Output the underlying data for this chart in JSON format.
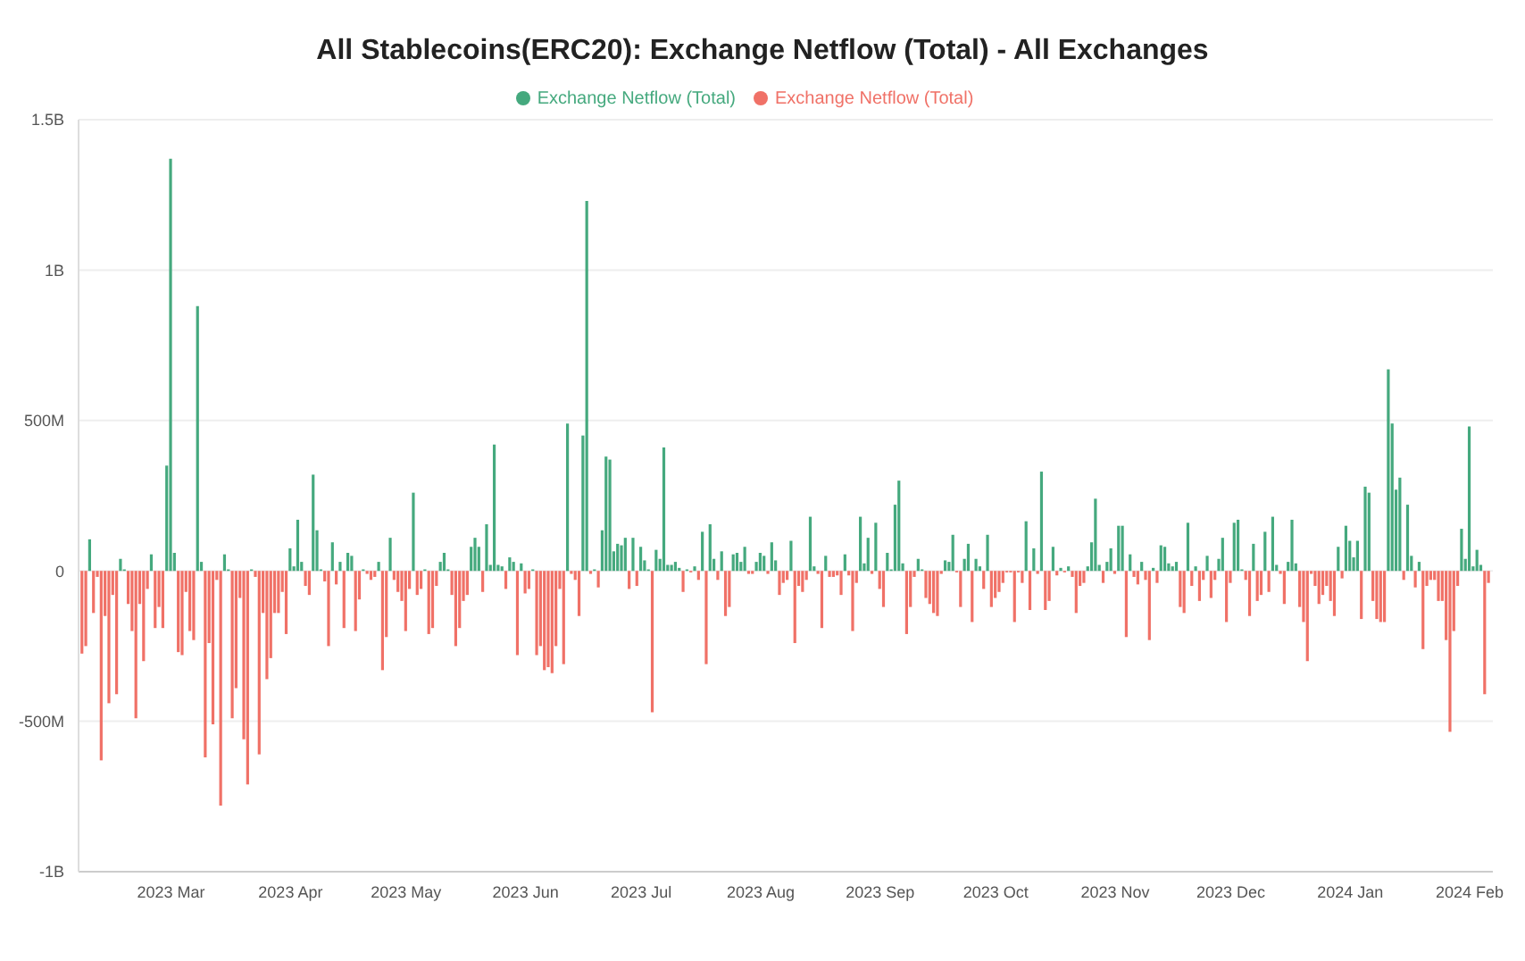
{
  "chart_data": {
    "type": "bar",
    "title": "All Stablecoins(ERC20): Exchange Netflow (Total) - All Exchanges",
    "x": [
      "2023-02-06",
      "2023-02-07",
      "2023-02-08",
      "2023-02-09",
      "2023-02-10",
      "2023-02-11",
      "2023-02-12",
      "2023-02-13",
      "2023-02-14",
      "2023-02-15",
      "2023-02-16",
      "2023-02-17",
      "2023-02-18",
      "2023-02-19",
      "2023-02-20",
      "2023-02-21",
      "2023-02-22",
      "2023-02-23",
      "2023-02-24",
      "2023-02-25",
      "2023-02-26",
      "2023-02-27",
      "2023-02-28",
      "2023-03-01",
      "2023-03-02",
      "2023-03-03",
      "2023-03-04",
      "2023-03-05",
      "2023-03-06",
      "2023-03-07",
      "2023-03-08",
      "2023-03-09",
      "2023-03-10",
      "2023-03-11",
      "2023-03-12",
      "2023-03-13",
      "2023-03-14",
      "2023-03-15",
      "2023-03-16",
      "2023-03-17",
      "2023-03-18",
      "2023-03-19",
      "2023-03-20",
      "2023-03-21",
      "2023-03-22",
      "2023-03-23",
      "2023-03-24",
      "2023-03-25",
      "2023-03-26",
      "2023-03-27",
      "2023-03-28",
      "2023-03-29",
      "2023-03-30",
      "2023-03-31",
      "2023-04-01",
      "2023-04-02",
      "2023-04-03",
      "2023-04-04",
      "2023-04-05",
      "2023-04-06",
      "2023-04-07",
      "2023-04-08",
      "2023-04-09",
      "2023-04-10",
      "2023-04-11",
      "2023-04-12",
      "2023-04-13",
      "2023-04-14",
      "2023-04-15",
      "2023-04-16",
      "2023-04-17",
      "2023-04-18",
      "2023-04-19",
      "2023-04-20",
      "2023-04-21",
      "2023-04-22",
      "2023-04-23",
      "2023-04-24",
      "2023-04-25",
      "2023-04-26",
      "2023-04-27",
      "2023-04-28",
      "2023-04-29",
      "2023-04-30",
      "2023-05-01",
      "2023-05-02",
      "2023-05-03",
      "2023-05-04",
      "2023-05-05",
      "2023-05-06",
      "2023-05-07",
      "2023-05-08",
      "2023-05-09",
      "2023-05-10",
      "2023-05-11",
      "2023-05-12",
      "2023-05-13",
      "2023-05-14",
      "2023-05-15",
      "2023-05-16",
      "2023-05-17",
      "2023-05-18",
      "2023-05-19",
      "2023-05-20",
      "2023-05-21",
      "2023-05-22",
      "2023-05-23",
      "2023-05-24",
      "2023-05-25",
      "2023-05-26",
      "2023-05-27",
      "2023-05-28",
      "2023-05-29",
      "2023-05-30",
      "2023-05-31",
      "2023-06-01",
      "2023-06-02",
      "2023-06-03",
      "2023-06-04",
      "2023-06-05",
      "2023-06-06",
      "2023-06-07",
      "2023-06-08",
      "2023-06-09",
      "2023-06-10",
      "2023-06-11",
      "2023-06-12",
      "2023-06-13",
      "2023-06-14",
      "2023-06-15",
      "2023-06-16",
      "2023-06-17",
      "2023-06-18",
      "2023-06-19",
      "2023-06-20",
      "2023-06-21",
      "2023-06-22",
      "2023-06-23",
      "2023-06-24",
      "2023-06-25",
      "2023-06-26",
      "2023-06-27",
      "2023-06-28",
      "2023-06-29",
      "2023-06-30",
      "2023-07-01",
      "2023-07-02",
      "2023-07-03",
      "2023-07-04",
      "2023-07-05",
      "2023-07-06",
      "2023-07-07",
      "2023-07-08",
      "2023-07-09",
      "2023-07-10",
      "2023-07-11",
      "2023-07-12",
      "2023-07-13",
      "2023-07-14",
      "2023-07-15",
      "2023-07-16",
      "2023-07-17",
      "2023-07-18",
      "2023-07-19",
      "2023-07-20",
      "2023-07-21",
      "2023-07-22",
      "2023-07-23",
      "2023-07-24",
      "2023-07-25",
      "2023-07-26",
      "2023-07-27",
      "2023-07-28",
      "2023-07-29",
      "2023-07-30",
      "2023-07-31",
      "2023-08-01",
      "2023-08-02",
      "2023-08-03",
      "2023-08-04",
      "2023-08-05",
      "2023-08-06",
      "2023-08-07",
      "2023-08-08",
      "2023-08-09",
      "2023-08-10",
      "2023-08-11",
      "2023-08-12",
      "2023-08-13",
      "2023-08-14",
      "2023-08-15",
      "2023-08-16",
      "2023-08-17",
      "2023-08-18",
      "2023-08-19",
      "2023-08-20",
      "2023-08-21",
      "2023-08-22",
      "2023-08-23",
      "2023-08-24",
      "2023-08-25",
      "2023-08-26",
      "2023-08-27",
      "2023-08-28",
      "2023-08-29",
      "2023-08-30",
      "2023-08-31",
      "2023-09-01",
      "2023-09-02",
      "2023-09-03",
      "2023-09-04",
      "2023-09-05",
      "2023-09-06",
      "2023-09-07",
      "2023-09-08",
      "2023-09-09",
      "2023-09-10",
      "2023-09-11",
      "2023-09-12",
      "2023-09-13",
      "2023-09-14",
      "2023-09-15",
      "2023-09-16",
      "2023-09-17",
      "2023-09-18",
      "2023-09-19",
      "2023-09-20",
      "2023-09-21",
      "2023-09-22",
      "2023-09-23",
      "2023-09-24",
      "2023-09-25",
      "2023-09-26",
      "2023-09-27",
      "2023-09-28",
      "2023-09-29",
      "2023-09-30",
      "2023-10-01",
      "2023-10-02",
      "2023-10-03",
      "2023-10-04",
      "2023-10-05",
      "2023-10-06",
      "2023-10-07",
      "2023-10-08",
      "2023-10-09",
      "2023-10-10",
      "2023-10-11",
      "2023-10-12",
      "2023-10-13",
      "2023-10-14",
      "2023-10-15",
      "2023-10-16",
      "2023-10-17",
      "2023-10-18",
      "2023-10-19",
      "2023-10-20",
      "2023-10-21",
      "2023-10-22",
      "2023-10-23",
      "2023-10-24",
      "2023-10-25",
      "2023-10-26",
      "2023-10-27",
      "2023-10-28",
      "2023-10-29",
      "2023-10-30",
      "2023-10-31",
      "2023-11-01",
      "2023-11-02",
      "2023-11-03",
      "2023-11-04",
      "2023-11-05",
      "2023-11-06",
      "2023-11-07",
      "2023-11-08",
      "2023-11-09",
      "2023-11-10",
      "2023-11-11",
      "2023-11-12",
      "2023-11-13",
      "2023-11-14",
      "2023-11-15",
      "2023-11-16",
      "2023-11-17",
      "2023-11-18",
      "2023-11-19",
      "2023-11-20",
      "2023-11-21",
      "2023-11-22",
      "2023-11-23",
      "2023-11-24",
      "2023-11-25",
      "2023-11-26",
      "2023-11-27",
      "2023-11-28",
      "2023-11-29",
      "2023-11-30",
      "2023-12-01",
      "2023-12-02",
      "2023-12-03",
      "2023-12-04",
      "2023-12-05",
      "2023-12-06",
      "2023-12-07",
      "2023-12-08",
      "2023-12-09",
      "2023-12-10",
      "2023-12-11",
      "2023-12-12",
      "2023-12-13",
      "2023-12-14",
      "2023-12-15",
      "2023-12-16",
      "2023-12-17",
      "2023-12-18",
      "2023-12-19",
      "2023-12-20",
      "2023-12-21",
      "2023-12-22",
      "2023-12-23",
      "2023-12-24",
      "2023-12-25",
      "2023-12-26",
      "2023-12-27",
      "2023-12-28",
      "2023-12-29",
      "2023-12-30",
      "2023-12-31",
      "2024-01-01",
      "2024-01-02",
      "2024-01-03",
      "2024-01-04",
      "2024-01-05",
      "2024-01-06",
      "2024-01-07",
      "2024-01-08",
      "2024-01-09",
      "2024-01-10",
      "2024-01-11",
      "2024-01-12",
      "2024-01-13",
      "2024-01-14",
      "2024-01-15",
      "2024-01-16",
      "2024-01-17",
      "2024-01-18",
      "2024-01-19",
      "2024-01-20",
      "2024-01-21",
      "2024-01-22",
      "2024-01-23",
      "2024-01-24",
      "2024-01-25",
      "2024-01-26",
      "2024-01-27",
      "2024-01-28",
      "2024-01-29",
      "2024-01-30",
      "2024-01-31",
      "2024-02-01",
      "2024-02-02",
      "2024-02-03",
      "2024-02-04",
      "2024-02-05",
      "2024-02-06"
    ],
    "series": [
      {
        "name": "Exchange Netflow (Total)",
        "color": "#45a97e",
        "values": [
          null,
          null,
          105000000,
          null,
          null,
          null,
          null,
          null,
          null,
          null,
          40000000,
          5000000,
          null,
          null,
          null,
          null,
          null,
          null,
          55000000,
          null,
          null,
          null,
          350000000,
          1370000000,
          60000000,
          null,
          null,
          null,
          null,
          null,
          880000000,
          30000000,
          null,
          null,
          null,
          null,
          null,
          55000000,
          5000000,
          null,
          null,
          null,
          null,
          null,
          5000000,
          null,
          null,
          null,
          null,
          null,
          null,
          null,
          null,
          null,
          75000000,
          15000000,
          170000000,
          30000000,
          null,
          null,
          320000000,
          135000000,
          5000000,
          null,
          null,
          95000000,
          null,
          30000000,
          null,
          60000000,
          50000000,
          null,
          null,
          5000000,
          null,
          null,
          null,
          30000000,
          null,
          null,
          110000000,
          null,
          null,
          null,
          null,
          null,
          260000000,
          null,
          null,
          5000000,
          null,
          null,
          null,
          30000000,
          60000000,
          5000000,
          null,
          null,
          null,
          null,
          null,
          80000000,
          110000000,
          80000000,
          null,
          155000000,
          20000000,
          420000000,
          20000000,
          15000000,
          null,
          45000000,
          30000000,
          null,
          25000000,
          null,
          null,
          5000000,
          null,
          null,
          null,
          null,
          null,
          null,
          null,
          null,
          490000000,
          null,
          null,
          null,
          450000000,
          1230000000,
          null,
          5000000,
          null,
          135000000,
          380000000,
          370000000,
          65000000,
          90000000,
          85000000,
          110000000,
          null,
          110000000,
          null,
          80000000,
          35000000,
          5000000,
          null,
          70000000,
          40000000,
          410000000,
          20000000,
          20000000,
          30000000,
          10000000,
          null,
          5000000,
          null,
          15000000,
          null,
          130000000,
          null,
          155000000,
          40000000,
          null,
          65000000,
          null,
          null,
          55000000,
          60000000,
          30000000,
          80000000,
          null,
          null,
          30000000,
          60000000,
          50000000,
          null,
          95000000,
          35000000,
          null,
          null,
          null,
          100000000,
          null,
          null,
          null,
          null,
          180000000,
          15000000,
          null,
          null,
          50000000,
          null,
          null,
          null,
          null,
          55000000,
          null,
          null,
          null,
          180000000,
          25000000,
          110000000,
          null,
          160000000,
          null,
          null,
          60000000,
          5000000,
          220000000,
          300000000,
          25000000,
          null,
          null,
          null,
          40000000,
          5000000,
          null,
          null,
          null,
          null,
          null,
          35000000,
          30000000,
          120000000,
          null,
          null,
          40000000,
          90000000,
          null,
          40000000,
          15000000,
          null,
          120000000,
          null,
          null,
          null,
          null,
          null,
          null,
          null,
          null,
          null,
          165000000,
          null,
          75000000,
          null,
          330000000,
          null,
          null,
          80000000,
          null,
          10000000,
          null,
          15000000,
          null,
          null,
          null,
          null,
          15000000,
          95000000,
          240000000,
          20000000,
          null,
          30000000,
          75000000,
          null,
          150000000,
          150000000,
          null,
          55000000,
          null,
          null,
          30000000,
          null,
          null,
          10000000,
          null,
          85000000,
          80000000,
          25000000,
          15000000,
          30000000,
          null,
          null,
          160000000,
          null,
          15000000,
          null,
          null,
          50000000,
          null,
          null,
          40000000,
          110000000,
          null,
          null,
          160000000,
          170000000,
          5000000,
          null,
          null,
          90000000,
          null,
          null,
          130000000,
          null,
          180000000,
          20000000,
          null,
          null,
          30000000,
          170000000,
          25000000,
          null,
          null,
          null,
          null,
          null,
          null,
          null,
          null,
          null,
          null,
          80000000,
          null,
          150000000,
          100000000,
          45000000,
          100000000,
          null,
          280000000,
          260000000,
          null,
          null,
          null,
          null,
          670000000,
          490000000,
          270000000,
          310000000,
          null,
          220000000,
          50000000,
          null,
          30000000,
          null,
          null,
          null,
          null,
          null,
          null,
          null,
          null,
          null,
          null,
          140000000,
          40000000,
          480000000,
          15000000,
          70000000,
          20000000,
          null,
          null
        ]
      },
      {
        "name": "Exchange Netflow (Total)",
        "color": "#f07167",
        "values": [
          -275000000,
          -250000000,
          null,
          -140000000,
          -20000000,
          -630000000,
          -150000000,
          -440000000,
          -80000000,
          -410000000,
          null,
          null,
          -110000000,
          -200000000,
          -490000000,
          -110000000,
          -300000000,
          -60000000,
          null,
          -190000000,
          -120000000,
          -190000000,
          null,
          null,
          null,
          -270000000,
          -280000000,
          -70000000,
          -200000000,
          -230000000,
          null,
          null,
          -620000000,
          -240000000,
          -510000000,
          -30000000,
          -780000000,
          null,
          null,
          -490000000,
          -390000000,
          -90000000,
          -560000000,
          -710000000,
          null,
          -20000000,
          -610000000,
          -140000000,
          -360000000,
          -290000000,
          -140000000,
          -140000000,
          -70000000,
          -210000000,
          null,
          null,
          null,
          null,
          -50000000,
          -80000000,
          null,
          null,
          null,
          -35000000,
          -250000000,
          null,
          -45000000,
          null,
          -190000000,
          null,
          null,
          -200000000,
          -95000000,
          null,
          -10000000,
          -30000000,
          -20000000,
          null,
          -330000000,
          -220000000,
          null,
          -30000000,
          -70000000,
          -100000000,
          -200000000,
          -60000000,
          null,
          -80000000,
          -60000000,
          null,
          -210000000,
          -190000000,
          -50000000,
          null,
          null,
          null,
          -80000000,
          -250000000,
          -190000000,
          -100000000,
          -80000000,
          null,
          null,
          null,
          -70000000,
          null,
          null,
          null,
          null,
          null,
          -60000000,
          null,
          null,
          -280000000,
          null,
          -75000000,
          -60000000,
          null,
          -280000000,
          -250000000,
          -330000000,
          -320000000,
          -340000000,
          -250000000,
          -60000000,
          -310000000,
          null,
          -10000000,
          -30000000,
          -150000000,
          null,
          null,
          -10000000,
          null,
          -55000000,
          null,
          null,
          null,
          null,
          null,
          null,
          null,
          -60000000,
          null,
          -50000000,
          null,
          null,
          null,
          -470000000,
          null,
          null,
          null,
          null,
          null,
          null,
          null,
          -70000000,
          null,
          -5000000,
          null,
          -30000000,
          null,
          -310000000,
          null,
          null,
          -30000000,
          null,
          -150000000,
          -120000000,
          null,
          null,
          null,
          null,
          -10000000,
          -10000000,
          null,
          null,
          null,
          -10000000,
          null,
          null,
          -80000000,
          -40000000,
          -30000000,
          null,
          -240000000,
          -50000000,
          -70000000,
          -30000000,
          null,
          null,
          -10000000,
          -190000000,
          null,
          -20000000,
          -20000000,
          -15000000,
          -80000000,
          null,
          -15000000,
          -200000000,
          -40000000,
          null,
          null,
          null,
          -10000000,
          null,
          -60000000,
          -120000000,
          null,
          null,
          null,
          null,
          null,
          -210000000,
          -120000000,
          -20000000,
          null,
          null,
          -90000000,
          -110000000,
          -140000000,
          -150000000,
          -10000000,
          null,
          null,
          null,
          -5000000,
          -120000000,
          null,
          null,
          -170000000,
          null,
          null,
          -60000000,
          null,
          -120000000,
          -90000000,
          -70000000,
          -40000000,
          -5000000,
          -5000000,
          -170000000,
          -5000000,
          -40000000,
          null,
          -130000000,
          null,
          -10000000,
          null,
          -130000000,
          -100000000,
          null,
          -15000000,
          null,
          -5000000,
          null,
          -20000000,
          -140000000,
          -50000000,
          -40000000,
          null,
          null,
          null,
          null,
          -40000000,
          null,
          null,
          -10000000,
          null,
          null,
          -220000000,
          null,
          -20000000,
          -45000000,
          null,
          -30000000,
          -230000000,
          null,
          -40000000,
          null,
          null,
          null,
          null,
          null,
          -120000000,
          -140000000,
          null,
          -50000000,
          null,
          -100000000,
          -30000000,
          null,
          -90000000,
          -30000000,
          null,
          null,
          -170000000,
          -40000000,
          null,
          null,
          null,
          -30000000,
          -150000000,
          null,
          -100000000,
          -80000000,
          null,
          -70000000,
          null,
          null,
          -10000000,
          -110000000,
          null,
          null,
          null,
          -120000000,
          -170000000,
          -300000000,
          -10000000,
          -50000000,
          -110000000,
          -80000000,
          -50000000,
          -100000000,
          -150000000,
          null,
          -25000000,
          null,
          null,
          null,
          null,
          -160000000,
          null,
          null,
          -100000000,
          -160000000,
          -170000000,
          -170000000,
          null,
          null,
          null,
          null,
          -30000000,
          null,
          null,
          -55000000,
          null,
          -260000000,
          -50000000,
          -30000000,
          -30000000,
          -100000000,
          -100000000,
          -230000000,
          -535000000,
          -200000000,
          -50000000,
          null,
          null,
          null,
          null,
          null,
          null,
          -410000000,
          -40000000
        ]
      }
    ],
    "stacked": true,
    "xlim": [
      "2023-02-05",
      "2024-02-07"
    ],
    "xticks": [
      {
        "value": "2023-03-01",
        "label": "2023 Mar"
      },
      {
        "value": "2023-04-01",
        "label": "2023 Apr"
      },
      {
        "value": "2023-05-01",
        "label": "2023 May"
      },
      {
        "value": "2023-06-01",
        "label": "2023 Jun"
      },
      {
        "value": "2023-07-01",
        "label": "2023 Jul"
      },
      {
        "value": "2023-08-01",
        "label": "2023 Aug"
      },
      {
        "value": "2023-09-01",
        "label": "2023 Sep"
      },
      {
        "value": "2023-10-01",
        "label": "2023 Oct"
      },
      {
        "value": "2023-11-01",
        "label": "2023 Nov"
      },
      {
        "value": "2023-12-01",
        "label": "2023 Dec"
      },
      {
        "value": "2024-01-01",
        "label": "2024 Jan"
      },
      {
        "value": "2024-02-01",
        "label": "2024 Feb"
      }
    ],
    "ylim": [
      -1000000000,
      1500000000
    ],
    "yticks": [
      {
        "value": -1000000000,
        "label": "-1B"
      },
      {
        "value": -500000000,
        "label": "-500M"
      },
      0,
      {
        "value": 500000000,
        "label": "500M"
      },
      {
        "value": 1000000000,
        "label": "1B"
      },
      {
        "value": 1500000000,
        "label": "1.5B"
      }
    ],
    "grid": "y",
    "legend": "top"
  }
}
